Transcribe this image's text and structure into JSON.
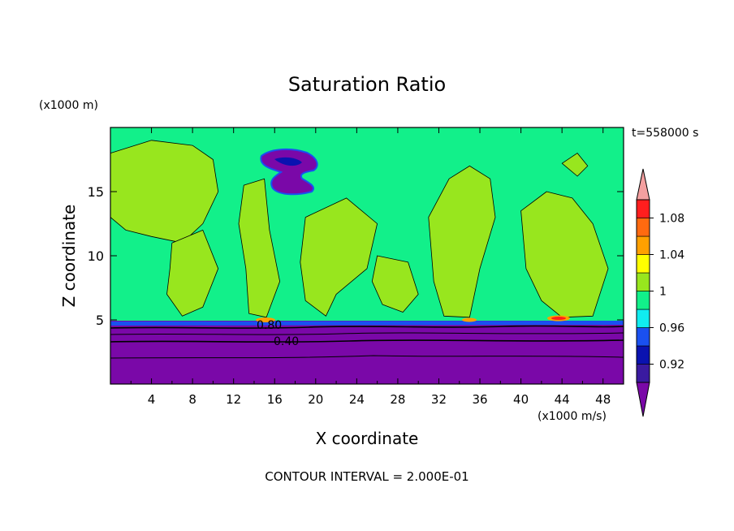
{
  "chart_data": {
    "type": "heatmap",
    "title": "Saturation Ratio",
    "xlabel": "X coordinate",
    "ylabel": "Z coordinate",
    "x_units": "(x1000 m/s)",
    "y_units": "(x1000 m)",
    "time_label": "t=558000 s",
    "footer": "CONTOUR INTERVAL = 2.000E-01",
    "xlim": [
      0,
      50
    ],
    "ylim": [
      0,
      20
    ],
    "x_ticks": [
      "4",
      "8",
      "12",
      "16",
      "20",
      "24",
      "28",
      "32",
      "36",
      "40",
      "44",
      "48"
    ],
    "y_ticks": [
      "5",
      "10",
      "15"
    ],
    "contour_labels": [
      "0.80",
      "0.40"
    ],
    "colorbar": {
      "tick_labels": [
        "0.92",
        "0.96",
        "1",
        "1.04",
        "1.08"
      ],
      "levels": [
        {
          "range": "<0.90",
          "color": "#7a08a8"
        },
        {
          "range": "0.90-0.92",
          "color": "#3a1aa0"
        },
        {
          "range": "0.92-0.94",
          "color": "#0a12b0"
        },
        {
          "range": "0.94-0.96",
          "color": "#1a50f0"
        },
        {
          "range": "0.96-0.98",
          "color": "#10ecf0"
        },
        {
          "range": "0.98-1.00",
          "color": "#12f08a"
        },
        {
          "range": "1.00-1.02",
          "color": "#98e61e"
        },
        {
          "range": "1.02-1.04",
          "color": "#ffff00"
        },
        {
          "range": "1.04-1.06",
          "color": "#ffa000"
        },
        {
          "range": "1.06-1.08",
          "color": "#ff6a10"
        },
        {
          "range": "1.08-1.10",
          "color": "#ff1e1e"
        },
        {
          "range": ">1.10",
          "color": "#f4a0a0"
        }
      ]
    },
    "regions": {
      "lower_layer_top_km": 5,
      "label_value_0_80_height_km": 4.5,
      "label_value_0_40_height_km": 3.4,
      "upper_dry_patch": {
        "x_range_km": [
          15,
          21
        ],
        "z_range_km": [
          14.8,
          18.3
        ]
      }
    }
  }
}
